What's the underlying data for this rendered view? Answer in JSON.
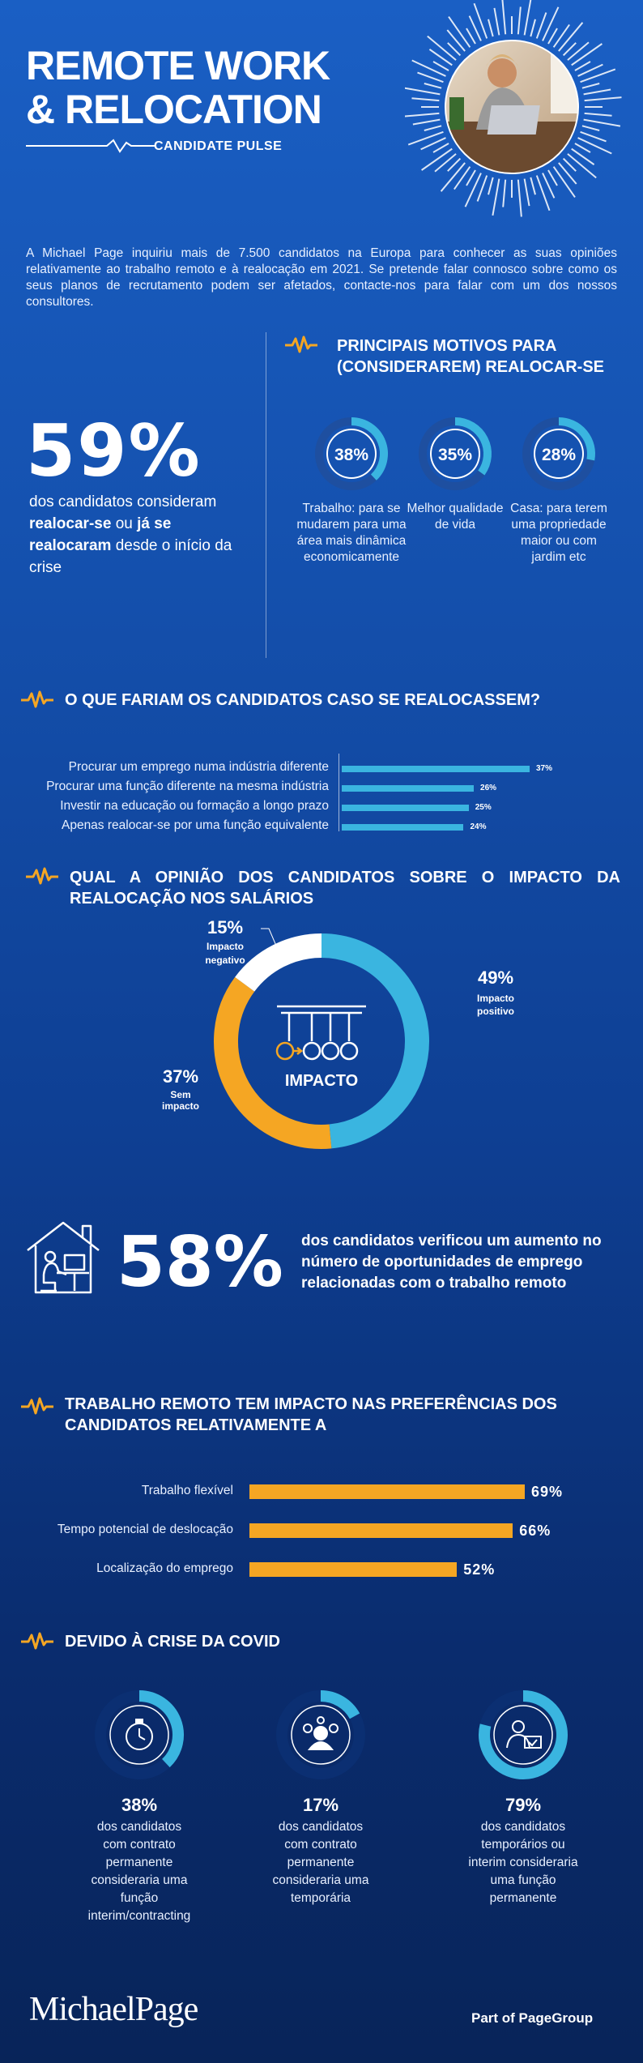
{
  "header": {
    "title_line1": "REMOTE WORK",
    "title_line2": "& RELOCATION",
    "subtitle": "CANDIDATE PULSE"
  },
  "intro": "A Michael Page inquiriu mais de 7.500 candidatos na Europa para conhecer as suas opiniões relativamente ao trabalho remoto e à realocação em 2021. Se pretende falar connosco sobre como os seus planos de recrutamento podem ser afetados, contacte-nos para falar com um dos nossos consultores.",
  "stat59": {
    "value": "59%",
    "text_a": "dos candidatos consideram",
    "text_b": "realocar-se",
    "text_c": "ou",
    "text_d": "já se realocaram",
    "text_e": "desde o início da crise"
  },
  "motives": {
    "heading_line1": "PRINCIPAIS MOTIVOS PARA",
    "heading_line2": "(CONSIDERAREM) REALOCAR-SE",
    "items": [
      {
        "pct": "38%",
        "value": 38,
        "label": "Trabalho: para se mudarem para uma área mais dinâmica economicamente"
      },
      {
        "pct": "35%",
        "value": 35,
        "label": "Melhor qualidade de vida"
      },
      {
        "pct": "28%",
        "value": 28,
        "label": "Casa: para terem uma propriedade maior ou com jardim etc"
      }
    ]
  },
  "would_do": {
    "heading": "O QUE FARIAM OS CANDIDATOS CASO SE REALOCASSEM?",
    "items": [
      {
        "label": "Procurar um emprego numa indústria diferente",
        "pct": "37%",
        "value": 37
      },
      {
        "label": "Procurar uma função diferente na mesma indústria",
        "pct": "26%",
        "value": 26
      },
      {
        "label": "Investir na educação ou formação a longo prazo",
        "pct": "25%",
        "value": 25
      },
      {
        "label": "Apenas realocar-se por uma função equivalente",
        "pct": "24%",
        "value": 24
      }
    ]
  },
  "salary": {
    "heading_line1": "QUAL A OPINIÃO DOS CANDIDATOS SOBRE O IMPACTO DA",
    "heading_line2": "REALOCAÇÃO NOS SALÁRIOS",
    "center_label": "IMPACTO",
    "segments": [
      {
        "pct": "49%",
        "value": 49,
        "label": "Impacto positivo",
        "color": "#3ab5e0"
      },
      {
        "pct": "37%",
        "value": 37,
        "label": "Sem impacto",
        "color": "#f5a623"
      },
      {
        "pct": "15%",
        "value": 15,
        "label": "Impacto negativo",
        "color": "#ffffff"
      }
    ]
  },
  "stat58": {
    "value": "58%",
    "text": "dos candidatos verificou um aumento no número de oportunidades de emprego relacionadas com o trabalho remoto"
  },
  "preferences": {
    "heading_line1": "TRABALHO REMOTO TEM IMPACTO NAS PREFERÊNCIAS DOS",
    "heading_line2": "CANDIDATOS RELATIVAMENTE A",
    "items": [
      {
        "label": "Trabalho flexível",
        "pct": "69%",
        "value": 69
      },
      {
        "label": "Tempo potencial de deslocação",
        "pct": "66%",
        "value": 66
      },
      {
        "label": "Localização do emprego",
        "pct": "52%",
        "value": 52
      }
    ]
  },
  "covid": {
    "heading": "DEVIDO À CRISE DA COVID",
    "items": [
      {
        "pct": "38%",
        "value": 38,
        "icon": "stopwatch-icon",
        "text": "dos candidatos com contrato permanente consideraria uma função interim/contracting"
      },
      {
        "pct": "17%",
        "value": 17,
        "icon": "people-icon",
        "text": "dos candidatos com contrato permanente consideraria uma temporária"
      },
      {
        "pct": "79%",
        "value": 79,
        "icon": "worker-laptop-icon",
        "text": "dos candidatos temporários ou interim consideraria uma função permanente"
      }
    ]
  },
  "footer": {
    "brand": "MichaelPage",
    "brand_part1": "Michael",
    "brand_part2": "Page",
    "tagline": "Part of PageGroup"
  },
  "colors": {
    "accent_orange": "#f5a623",
    "accent_cyan": "#3ab5e0",
    "bg_blue": "#1552b0"
  }
}
